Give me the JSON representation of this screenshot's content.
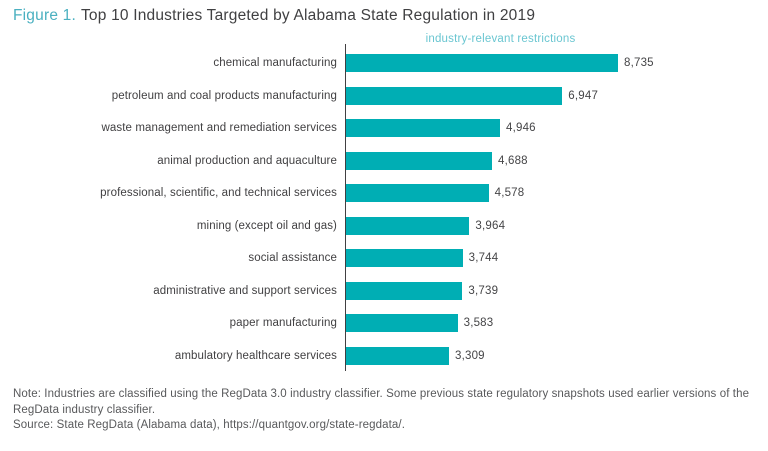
{
  "title": {
    "figure_label": "Figure 1.",
    "text": "Top 10 Industries Targeted by Alabama State Regulation in 2019"
  },
  "chart_data": {
    "type": "bar",
    "orientation": "horizontal",
    "series_label": "industry-relevant restrictions",
    "categories": [
      "chemical manufacturing",
      "petroleum and coal products manufacturing",
      "waste management and remediation services",
      "animal production and aquaculture",
      "professional, scientific, and technical services",
      "mining (except oil and gas)",
      "social assistance",
      "administrative and support services",
      "paper manufacturing",
      "ambulatory healthcare services"
    ],
    "values": [
      8735,
      6947,
      4946,
      4688,
      4578,
      3964,
      3744,
      3739,
      3583,
      3309
    ],
    "value_labels": [
      "8,735",
      "6,947",
      "4,946",
      "4,688",
      "4,578",
      "3,964",
      "3,744",
      "3,739",
      "3,583",
      "3,309"
    ],
    "xlim": [
      0,
      8735
    ],
    "grid": false,
    "legend_position": "top",
    "value_labels_shown": true
  },
  "colors": {
    "bar": "#00aeb4",
    "accent": "#4ab0c0",
    "series_label": "#6ac6d1",
    "title_text": "#404042",
    "category_label": "#414042",
    "value_label": "#454547",
    "axis": "#414042",
    "note_text": "#58595b"
  },
  "notes": {
    "note": "Note: Industries are classified using the RegData 3.0 industry classifier. Some previous state regulatory snapshots used earlier versions of the RegData industry classifier.",
    "source": "Source: State RegData (Alabama data), https://quantgov.org/state-regdata/."
  }
}
